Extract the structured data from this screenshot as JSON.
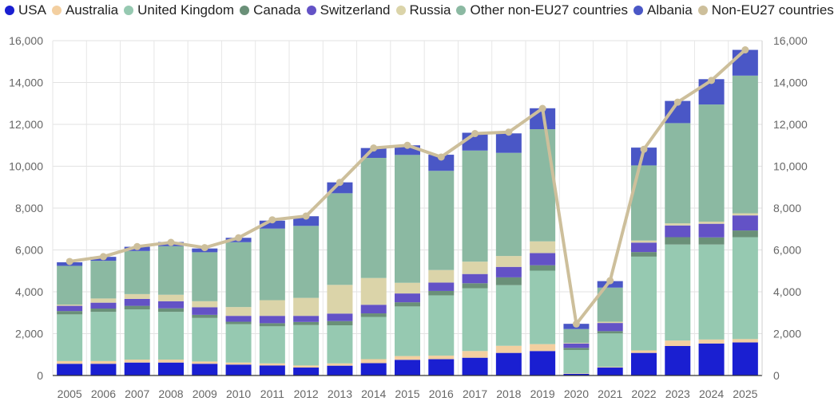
{
  "chart_data": {
    "type": "bar",
    "categories": [
      "2005",
      "2006",
      "2007",
      "2008",
      "2009",
      "2010",
      "2011",
      "2012",
      "2013",
      "2014",
      "2015",
      "2016",
      "2017",
      "2018",
      "2019",
      "2020",
      "2021",
      "2022",
      "2023",
      "2024",
      "2025"
    ],
    "ylim": [
      0,
      16000
    ],
    "yticks": [
      "0",
      "2,000",
      "4,000",
      "6,000",
      "8,000",
      "10,000",
      "12,000",
      "14,000",
      "16,000"
    ],
    "legend_position": "top",
    "grid": true,
    "series": [
      {
        "name": "USA",
        "type": "bar",
        "color": "#1a1fd1",
        "values": [
          560,
          560,
          620,
          620,
          560,
          520,
          480,
          380,
          470,
          590,
          750,
          780,
          850,
          1080,
          1170,
          80,
          380,
          1080,
          1410,
          1530,
          1580
        ]
      },
      {
        "name": "Australia",
        "type": "bar",
        "color": "#f3cfa0",
        "values": [
          130,
          130,
          140,
          140,
          110,
          100,
          100,
          100,
          110,
          190,
          180,
          170,
          320,
          340,
          330,
          20,
          30,
          120,
          260,
          190,
          160
        ]
      },
      {
        "name": "United Kingdom",
        "type": "bar",
        "color": "#96c9b1",
        "values": [
          2230,
          2350,
          2400,
          2280,
          2080,
          1830,
          1770,
          1930,
          1820,
          2020,
          2370,
          2880,
          3000,
          2900,
          3510,
          1120,
          1600,
          4480,
          4590,
          4540,
          4870
        ]
      },
      {
        "name": "Canada",
        "type": "bar",
        "color": "#6a9078",
        "values": [
          160,
          160,
          170,
          170,
          150,
          120,
          150,
          150,
          200,
          170,
          200,
          210,
          240,
          370,
          260,
          100,
          110,
          220,
          350,
          340,
          320
        ]
      },
      {
        "name": "Switzerland",
        "type": "bar",
        "color": "#6352c6",
        "values": [
          250,
          280,
          330,
          340,
          360,
          280,
          350,
          290,
          360,
          410,
          420,
          400,
          440,
          500,
          580,
          210,
          390,
          450,
          560,
          650,
          720
        ]
      },
      {
        "name": "Russia",
        "type": "bar",
        "color": "#dbd4a9",
        "values": [
          60,
          200,
          230,
          310,
          290,
          420,
          750,
          860,
          1370,
          1280,
          510,
          600,
          590,
          520,
          560,
          30,
          60,
          100,
          100,
          100,
          100
        ]
      },
      {
        "name": "Other non-EU27 countries",
        "type": "bar",
        "color": "#8bb9a2",
        "values": [
          1850,
          1800,
          2060,
          2320,
          2340,
          3100,
          3420,
          3440,
          4380,
          5740,
          6110,
          4740,
          5310,
          4930,
          5360,
          660,
          1630,
          3590,
          4790,
          5600,
          6580
        ]
      },
      {
        "name": "Albania",
        "type": "bar",
        "color": "#4a57c6",
        "values": [
          170,
          190,
          200,
          200,
          180,
          210,
          380,
          460,
          520,
          470,
          460,
          770,
          850,
          930,
          1000,
          250,
          310,
          850,
          1060,
          1210,
          1230
        ]
      },
      {
        "name": "Non-EU27 countries",
        "type": "line",
        "color": "#cdbf9b",
        "values": [
          5450,
          5680,
          6160,
          6360,
          6110,
          6580,
          7440,
          7620,
          9230,
          10870,
          11000,
          10440,
          11560,
          11630,
          12760,
          2460,
          4530,
          10810,
          13060,
          14100,
          15560
        ]
      }
    ]
  }
}
